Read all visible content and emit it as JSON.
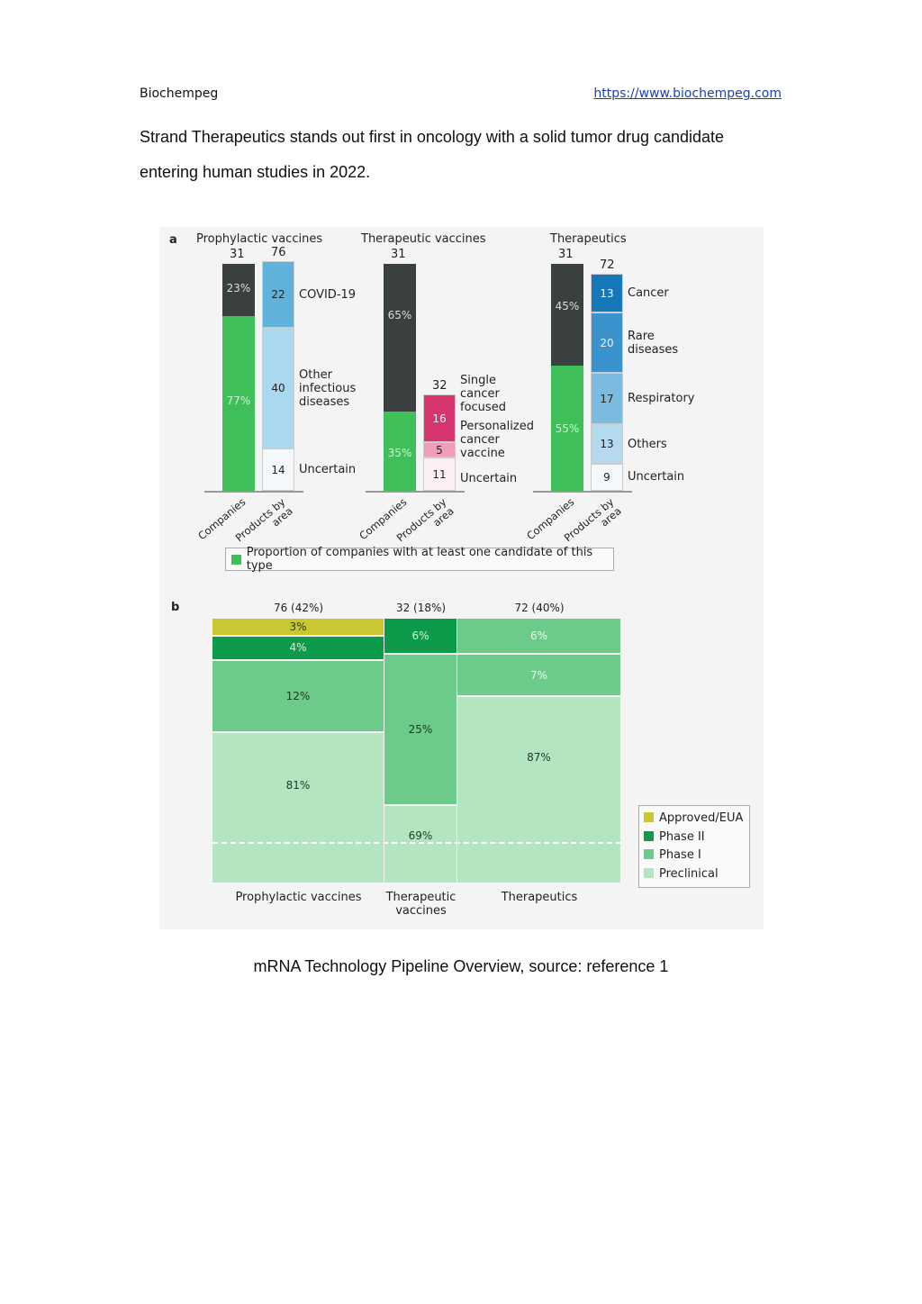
{
  "header": {
    "brand": "Biochempeg",
    "link": "https://www.biochempeg.com"
  },
  "intro": [
    "Strand Therapeutics stands out first in oncology with a solid tumor drug candidate",
    "entering human studies in 2022."
  ],
  "caption": "mRNA Technology Pipeline Overview, source: reference 1",
  "chart_data": [
    {
      "type": "bar",
      "panel": "a",
      "xlabels": [
        "Companies",
        "Products by\narea"
      ],
      "legend": "Proportion of companies with at least one candidate of this type",
      "groups": [
        {
          "title": "Prophylactic vaccines",
          "companies_total": "31",
          "companies_pct": [
            {
              "label": "23%",
              "value": 23
            },
            {
              "label": "77%",
              "value": 77
            }
          ],
          "products_total": "76",
          "products": [
            {
              "name": "COVID-19",
              "value": 22,
              "color": "#5fb2dc"
            },
            {
              "name": "Other\ninfectious\ndiseases",
              "value": 40,
              "color": "#a9d8ef"
            },
            {
              "name": "Uncertain",
              "value": 14,
              "color": "#f4f8fb"
            }
          ]
        },
        {
          "title": "Therapeutic vaccines",
          "companies_total": "31",
          "companies_pct": [
            {
              "label": "65%",
              "value": 65
            },
            {
              "label": "35%",
              "value": 35
            }
          ],
          "products_total": "32",
          "products": [
            {
              "name": "Single\ncancer\nfocused",
              "value": 16,
              "color": "#d6356f"
            },
            {
              "name": "Personalized\ncancer\nvaccine",
              "value": 5,
              "color": "#ee9dbb"
            },
            {
              "name": "Uncertain",
              "value": 11,
              "color": "#fcf0f3"
            }
          ]
        },
        {
          "title": "Therapeutics",
          "companies_total": "31",
          "companies_pct": [
            {
              "label": "45%",
              "value": 45
            },
            {
              "label": "55%",
              "value": 55
            }
          ],
          "products_total": "72",
          "products": [
            {
              "name": "Cancer",
              "value": 13,
              "color": "#1677b9"
            },
            {
              "name": "Rare\ndiseases",
              "value": 20,
              "color": "#3a93cc"
            },
            {
              "name": "Respiratory",
              "value": 17,
              "color": "#7bbbe0"
            },
            {
              "name": "Others",
              "value": 13,
              "color": "#b4daef"
            },
            {
              "name": "Uncertain",
              "value": 9,
              "color": "#f4f8fb"
            }
          ]
        }
      ],
      "colors": {
        "dark": "#3a3f3f",
        "green": "#3fbf5a"
      }
    },
    {
      "type": "bar",
      "panel": "b",
      "stacked": "mosaic",
      "columns": [
        {
          "name": "Prophylactic vaccines",
          "header": "76 (42%)",
          "segments": [
            {
              "stage": "Approved/EUA",
              "label": "3%",
              "value": 3
            },
            {
              "stage": "Phase II",
              "label": "4%",
              "value": 4
            },
            {
              "stage": "Phase I",
              "label": "12%",
              "value": 12
            },
            {
              "stage": "Preclinical",
              "label": "81%",
              "value": 81
            }
          ]
        },
        {
          "name": "Therapeutic\nvaccines",
          "header": "32 (18%)",
          "segments": [
            {
              "stage": "Phase II",
              "label": "6%",
              "value": 6
            },
            {
              "stage": "Phase I",
              "label": "25%",
              "value": 25
            },
            {
              "stage": "Preclinical",
              "label": "69%",
              "value": 69
            }
          ]
        },
        {
          "name": "Therapeutics",
          "header": "72 (40%)",
          "segments": [
            {
              "stage": "Phase I",
              "label": "6%",
              "value": 6
            },
            {
              "stage": "Phase I",
              "label": "7%",
              "value": 7
            },
            {
              "stage": "Preclinical",
              "label": "87%",
              "value": 87
            }
          ]
        }
      ],
      "legend": [
        {
          "stage": "Approved/EUA",
          "color": "#c9c832"
        },
        {
          "stage": "Phase II",
          "color": "#0d9a4a"
        },
        {
          "stage": "Phase I",
          "color": "#6ccb8a"
        },
        {
          "stage": "Preclinical",
          "color": "#b3e5c1"
        }
      ]
    }
  ]
}
